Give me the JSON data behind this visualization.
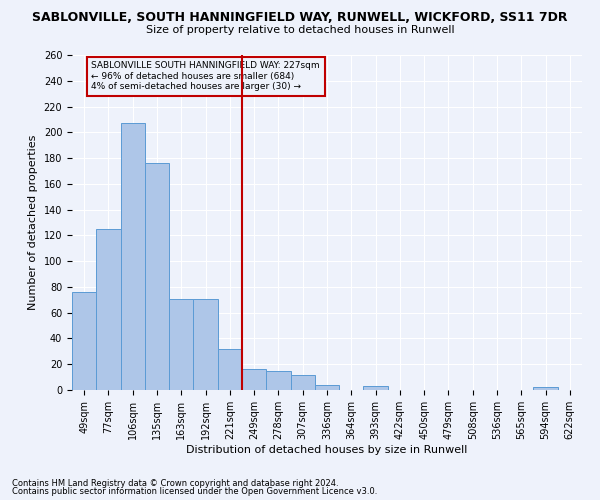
{
  "title": "SABLONVILLE, SOUTH HANNINGFIELD WAY, RUNWELL, WICKFORD, SS11 7DR",
  "subtitle": "Size of property relative to detached houses in Runwell",
  "xlabel": "Distribution of detached houses by size in Runwell",
  "ylabel": "Number of detached properties",
  "footnote1": "Contains HM Land Registry data © Crown copyright and database right 2024.",
  "footnote2": "Contains public sector information licensed under the Open Government Licence v3.0.",
  "categories": [
    "49sqm",
    "77sqm",
    "106sqm",
    "135sqm",
    "163sqm",
    "192sqm",
    "221sqm",
    "249sqm",
    "278sqm",
    "307sqm",
    "336sqm",
    "364sqm",
    "393sqm",
    "422sqm",
    "450sqm",
    "479sqm",
    "508sqm",
    "536sqm",
    "565sqm",
    "594sqm",
    "622sqm"
  ],
  "values": [
    76,
    125,
    207,
    176,
    71,
    71,
    32,
    16,
    15,
    12,
    4,
    0,
    3,
    0,
    0,
    0,
    0,
    0,
    0,
    2,
    0
  ],
  "bar_color": "#aec6e8",
  "bar_edgecolor": "#5b9bd5",
  "vline_x": 7.0,
  "vline_color": "#c00000",
  "annotation_text": "SABLONVILLE SOUTH HANNINGFIELD WAY: 227sqm\n← 96% of detached houses are smaller (684)\n4% of semi-detached houses are larger (30) →",
  "annotation_box_edgecolor": "#c00000",
  "ylim": [
    0,
    260
  ],
  "yticks": [
    0,
    20,
    40,
    60,
    80,
    100,
    120,
    140,
    160,
    180,
    200,
    220,
    240,
    260
  ],
  "background_color": "#eef2fb",
  "grid_color": "#ffffff",
  "title_fontsize": 9,
  "subtitle_fontsize": 8,
  "axis_label_fontsize": 8,
  "tick_fontsize": 7,
  "footnote_fontsize": 6
}
